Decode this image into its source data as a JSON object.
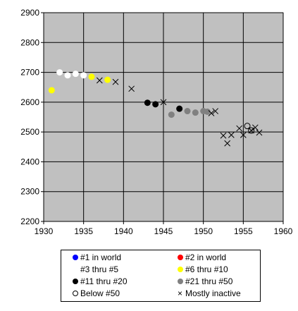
{
  "chart_data": {
    "type": "scatter",
    "xlim": [
      1930,
      1960
    ],
    "ylim": [
      2200,
      2900
    ],
    "x_ticks": [
      1930,
      1935,
      1940,
      1945,
      1950,
      1955,
      1960
    ],
    "y_ticks": [
      2200,
      2300,
      2400,
      2500,
      2600,
      2700,
      2800,
      2900
    ],
    "plot_background": "#c0c0c0",
    "grid": true,
    "legend_position": "bottom",
    "series": [
      {
        "name": "#1 in world",
        "marker": "filled-circle",
        "color": "#0000ff",
        "points": []
      },
      {
        "name": "#2 in world",
        "marker": "filled-circle",
        "color": "#ff0000",
        "points": []
      },
      {
        "name": "#3 thru #5",
        "marker": "filled-circle",
        "color": "#ffffff",
        "points": [
          [
            1932,
            2700
          ],
          [
            1933,
            2690
          ],
          [
            1934,
            2695
          ],
          [
            1935,
            2690
          ]
        ]
      },
      {
        "name": "#6 thru #10",
        "marker": "filled-circle",
        "color": "#ffff00",
        "points": [
          [
            1931,
            2640
          ],
          [
            1936,
            2685
          ],
          [
            1938,
            2675
          ]
        ]
      },
      {
        "name": "#11 thru #20",
        "marker": "filled-circle",
        "color": "#000000",
        "points": [
          [
            1943,
            2598
          ],
          [
            1944,
            2593
          ],
          [
            1947,
            2578
          ]
        ]
      },
      {
        "name": "#21 thru #50",
        "marker": "filled-circle",
        "color": "#808080",
        "points": [
          [
            1946,
            2558
          ],
          [
            1948,
            2570
          ],
          [
            1949,
            2565
          ],
          [
            1950,
            2570
          ],
          [
            1950.5,
            2568
          ]
        ]
      },
      {
        "name": "Below #50",
        "marker": "open-circle",
        "color": "#000000",
        "points": [
          [
            1955.5,
            2520
          ],
          [
            1956,
            2505
          ]
        ]
      },
      {
        "name": "Mostly inactive",
        "marker": "x",
        "color": "#000000",
        "points": [
          [
            1937,
            2673
          ],
          [
            1939,
            2668
          ],
          [
            1941,
            2645
          ],
          [
            1945,
            2600
          ],
          [
            1951,
            2563
          ],
          [
            1951.5,
            2570
          ],
          [
            1952.5,
            2488
          ],
          [
            1953,
            2462
          ],
          [
            1953.5,
            2490
          ],
          [
            1954.5,
            2512
          ],
          [
            1955,
            2490
          ],
          [
            1956,
            2505
          ],
          [
            1956.5,
            2515
          ],
          [
            1957,
            2498
          ]
        ]
      }
    ]
  }
}
